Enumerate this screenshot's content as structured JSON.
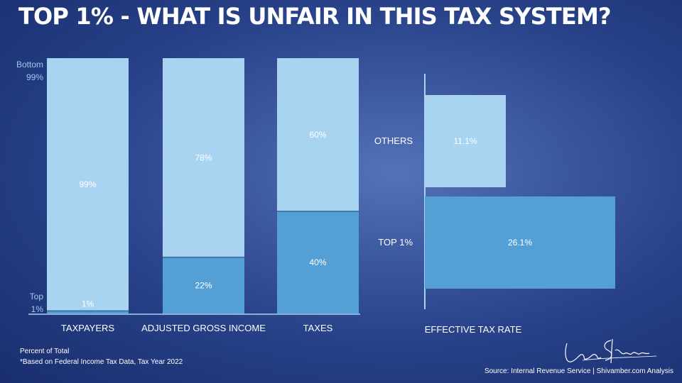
{
  "title": "TOP 1% - WHAT IS UNFAIR IN THIS TAX SYSTEM?",
  "footnotes": {
    "line1": "Percent of Total",
    "line2": "*Based on Federal Income Tax Data, Tax Year 2022"
  },
  "source": "Source: Internal Revenue Service | Shivamber.com Analysis",
  "colors": {
    "bottom99": "#a8d4f2",
    "top1": "#54a0d6",
    "axis_label": "#9cc9ee",
    "axis_line": "#a8d4f2"
  },
  "chart_data": [
    {
      "type": "bar",
      "stacked": true,
      "ylabel_top": "Bottom 99%",
      "ylabel_bottom": "Top 1%",
      "ylim": [
        0,
        100
      ],
      "categories": [
        "TAXPAYERS",
        "ADJUSTED GROSS INCOME",
        "TAXES"
      ],
      "series": [
        {
          "name": "Top 1%",
          "values": [
            1,
            22,
            40
          ],
          "labels": [
            "1%",
            "22%",
            "40%"
          ]
        },
        {
          "name": "Bottom 99%",
          "values": [
            99,
            78,
            60
          ],
          "labels": [
            "99%",
            "78%",
            "60%"
          ]
        }
      ]
    },
    {
      "type": "bar",
      "orientation": "horizontal",
      "xlabel": "EFFECTIVE TAX RATE",
      "xlim": [
        0,
        30
      ],
      "categories": [
        "OTHERS",
        "TOP 1%"
      ],
      "values": [
        11.1,
        26.1
      ],
      "labels": [
        "11.1%",
        "26.1%"
      ]
    }
  ]
}
